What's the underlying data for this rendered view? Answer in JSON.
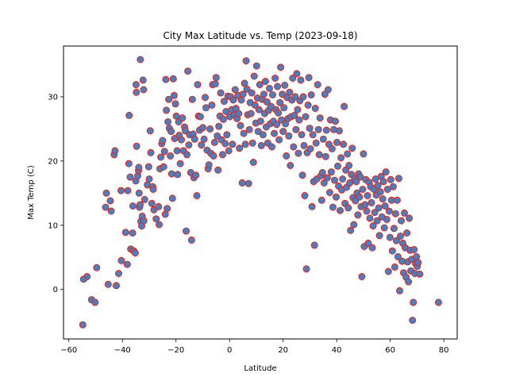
{
  "chart_data": {
    "type": "scatter",
    "title": "City Max Latitude vs. Temp (2023-09-18)",
    "xlabel": "Latitude",
    "ylabel": "Max Temp (C)",
    "xlim": [
      -62,
      85
    ],
    "ylim": [
      -7.7,
      37.9
    ],
    "xticks": [
      -60,
      -40,
      -20,
      0,
      20,
      40,
      60,
      80
    ],
    "yticks": [
      0,
      10,
      20,
      30
    ],
    "grid": false,
    "legend": "none",
    "marker_fill": "#4a7fbf",
    "marker_edge": "#e0231c",
    "points": [
      [
        -54.8,
        -5.5
      ],
      [
        -53.2,
        2.0
      ],
      [
        -54.5,
        1.6
      ],
      [
        -51.5,
        -1.6
      ],
      [
        -50.2,
        -2.0
      ],
      [
        -49.6,
        3.4
      ],
      [
        -46.3,
        12.8
      ],
      [
        -46.0,
        15.0
      ],
      [
        -45.3,
        0.8
      ],
      [
        -44.5,
        13.8
      ],
      [
        -44.2,
        12.2
      ],
      [
        -43.1,
        21.0
      ],
      [
        -42.8,
        21.6
      ],
      [
        -42.3,
        0.6
      ],
      [
        -41.4,
        2.5
      ],
      [
        -40.5,
        15.4
      ],
      [
        -40.4,
        4.5
      ],
      [
        -38.8,
        8.9
      ],
      [
        -38.2,
        3.9
      ],
      [
        -38.0,
        15.4
      ],
      [
        -37.6,
        19.6
      ],
      [
        -37.5,
        27.1
      ],
      [
        -37.1,
        17.5
      ],
      [
        -36.9,
        6.3
      ],
      [
        -36.2,
        8.8
      ],
      [
        -36.1,
        13.0
      ],
      [
        -35.8,
        6.0
      ],
      [
        -35.2,
        5.7
      ],
      [
        -35.0,
        16.9
      ],
      [
        -34.9,
        31.9
      ],
      [
        -34.8,
        30.7
      ],
      [
        -34.7,
        22.3
      ],
      [
        -34.3,
        17.7
      ],
      [
        -34.0,
        18.5
      ],
      [
        -33.9,
        19.0
      ],
      [
        -33.8,
        15.0
      ],
      [
        -33.6,
        12.8
      ],
      [
        -33.4,
        13.2
      ],
      [
        -33.3,
        35.8
      ],
      [
        -33.1,
        10.6
      ],
      [
        -32.8,
        9.9
      ],
      [
        -32.6,
        11.4
      ],
      [
        -32.3,
        32.6
      ],
      [
        -32.1,
        31.1
      ],
      [
        -32.0,
        10.7
      ],
      [
        -31.7,
        14.0
      ],
      [
        -30.7,
        16.3
      ],
      [
        -30.2,
        19.1
      ],
      [
        -30.0,
        17.2
      ],
      [
        -29.6,
        24.7
      ],
      [
        -29.4,
        21.3
      ],
      [
        -29.0,
        13.4
      ],
      [
        -28.7,
        16.0
      ],
      [
        -28.5,
        15.6
      ],
      [
        -28.2,
        12.4
      ],
      [
        -27.4,
        11.0
      ],
      [
        -26.5,
        12.9
      ],
      [
        -26.3,
        10.1
      ],
      [
        -26.0,
        18.8
      ],
      [
        -25.7,
        20.6
      ],
      [
        -25.3,
        22.7
      ],
      [
        -25.0,
        23.2
      ],
      [
        -24.6,
        19.1
      ],
      [
        -24.3,
        21.5
      ],
      [
        -24.0,
        11.7
      ],
      [
        -23.8,
        32.7
      ],
      [
        -23.6,
        27.9
      ],
      [
        -23.3,
        12.6
      ],
      [
        -23.0,
        26.1
      ],
      [
        -22.7,
        29.6
      ],
      [
        -22.5,
        25.1
      ],
      [
        -22.1,
        20.8
      ],
      [
        -21.8,
        24.6
      ],
      [
        -21.6,
        18.0
      ],
      [
        -21.3,
        14.2
      ],
      [
        -21.0,
        32.8
      ],
      [
        -20.7,
        30.2
      ],
      [
        -20.5,
        23.5
      ],
      [
        -20.2,
        28.9
      ],
      [
        -19.9,
        27.0
      ],
      [
        -19.6,
        21.6
      ],
      [
        -19.4,
        17.9
      ],
      [
        -19.0,
        26.1
      ],
      [
        -18.8,
        24.0
      ],
      [
        -18.4,
        19.6
      ],
      [
        -18.0,
        23.3
      ],
      [
        -17.6,
        26.7
      ],
      [
        -17.2,
        21.6
      ],
      [
        -16.8,
        25.3
      ],
      [
        -16.5,
        24.7
      ],
      [
        -16.2,
        9.1
      ],
      [
        -15.9,
        21.0
      ],
      [
        -15.6,
        34.0
      ],
      [
        -15.2,
        22.5
      ],
      [
        -14.9,
        24.1
      ],
      [
        -14.5,
        18.2
      ],
      [
        -14.2,
        7.7
      ],
      [
        -13.9,
        29.6
      ],
      [
        -13.6,
        24.2
      ],
      [
        -13.3,
        17.4
      ],
      [
        -13.0,
        23.4
      ],
      [
        -12.6,
        17.8
      ],
      [
        -12.2,
        14.6
      ],
      [
        -11.9,
        31.9
      ],
      [
        -11.6,
        27.0
      ],
      [
        -11.2,
        24.8
      ],
      [
        -10.9,
        26.9
      ],
      [
        -10.5,
        22.5
      ],
      [
        -10.0,
        25.2
      ],
      [
        -9.5,
        23.4
      ],
      [
        -9.1,
        29.9
      ],
      [
        -8.8,
        28.3
      ],
      [
        -8.4,
        21.7
      ],
      [
        -8.0,
        18.8
      ],
      [
        -7.7,
        19.4
      ],
      [
        -7.3,
        25.0
      ],
      [
        -7.0,
        21.2
      ],
      [
        -6.6,
        28.7
      ],
      [
        -6.3,
        31.9
      ],
      [
        -6.0,
        20.8
      ],
      [
        -5.6,
        22.9
      ],
      [
        -5.3,
        32.0
      ],
      [
        -5.0,
        33.0
      ],
      [
        -4.6,
        23.9
      ],
      [
        -4.3,
        18.6
      ],
      [
        -4.0,
        25.4
      ],
      [
        -3.6,
        27.0
      ],
      [
        -3.3,
        30.6
      ],
      [
        -3.0,
        23.3
      ],
      [
        -2.6,
        21.0
      ],
      [
        -2.3,
        26.5
      ],
      [
        -2.0,
        29.3
      ],
      [
        -1.6,
        22.7
      ],
      [
        -1.3,
        27.7
      ],
      [
        -1.0,
        24.1
      ],
      [
        -0.6,
        30.1
      ],
      [
        -0.3,
        21.6
      ],
      [
        0.1,
        26.9
      ],
      [
        0.4,
        30.0
      ],
      [
        0.8,
        28.0
      ],
      [
        1.1,
        22.6
      ],
      [
        1.4,
        29.5
      ],
      [
        1.8,
        27.2
      ],
      [
        2.1,
        31.1
      ],
      [
        2.4,
        28.2
      ],
      [
        2.8,
        26.6
      ],
      [
        3.1,
        30.2
      ],
      [
        3.4,
        27.4
      ],
      [
        3.7,
        22.0
      ],
      [
        4.1,
        25.5
      ],
      [
        4.4,
        29.5
      ],
      [
        4.7,
        16.6
      ],
      [
        5.0,
        30.4
      ],
      [
        5.3,
        24.3
      ],
      [
        5.6,
        32.1
      ],
      [
        5.9,
        22.6
      ],
      [
        6.2,
        35.6
      ],
      [
        6.5,
        31.2
      ],
      [
        6.8,
        27.2
      ],
      [
        7.1,
        16.5
      ],
      [
        7.4,
        24.9
      ],
      [
        7.7,
        29.1
      ],
      [
        8.0,
        27.4
      ],
      [
        8.3,
        30.6
      ],
      [
        8.6,
        22.8
      ],
      [
        8.9,
        19.8
      ],
      [
        9.2,
        33.2
      ],
      [
        9.5,
        28.7
      ],
      [
        9.8,
        25.9
      ],
      [
        10.1,
        34.8
      ],
      [
        10.4,
        29.8
      ],
      [
        10.7,
        24.6
      ],
      [
        11.0,
        28.0
      ],
      [
        11.3,
        31.9
      ],
      [
        11.6,
        26.2
      ],
      [
        11.9,
        22.4
      ],
      [
        12.2,
        29.6
      ],
      [
        12.5,
        24.1
      ],
      [
        12.8,
        30.4
      ],
      [
        13.1,
        27.4
      ],
      [
        13.4,
        32.4
      ],
      [
        13.7,
        25.3
      ],
      [
        14.0,
        29.2
      ],
      [
        14.3,
        22.8
      ],
      [
        14.6,
        27.9
      ],
      [
        14.9,
        31.3
      ],
      [
        15.2,
        25.8
      ],
      [
        15.5,
        28.5
      ],
      [
        15.8,
        22.2
      ],
      [
        16.1,
        30.3
      ],
      [
        16.4,
        26.2
      ],
      [
        16.7,
        24.3
      ],
      [
        17.0,
        32.9
      ],
      [
        17.3,
        28.0
      ],
      [
        17.6,
        25.7
      ],
      [
        17.9,
        31.6
      ],
      [
        18.2,
        27.5
      ],
      [
        18.5,
        23.3
      ],
      [
        18.8,
        29.1
      ],
      [
        19.1,
        34.6
      ],
      [
        19.4,
        26.4
      ],
      [
        19.7,
        30.4
      ],
      [
        20.0,
        24.6
      ],
      [
        20.3,
        28.3
      ],
      [
        20.6,
        31.8
      ],
      [
        20.9,
        25.8
      ],
      [
        21.2,
        20.8
      ],
      [
        21.5,
        29.9
      ],
      [
        21.8,
        26.6
      ],
      [
        22.1,
        23.9
      ],
      [
        22.4,
        30.7
      ],
      [
        22.7,
        19.3
      ],
      [
        23.0,
        26.9
      ],
      [
        23.3,
        29.5
      ],
      [
        23.6,
        32.9
      ],
      [
        23.9,
        22.2
      ],
      [
        24.2,
        27.1
      ],
      [
        24.5,
        30.0
      ],
      [
        24.8,
        24.9
      ],
      [
        25.1,
        33.6
      ],
      [
        25.4,
        28.0
      ],
      [
        25.7,
        21.2
      ],
      [
        26.0,
        26.4
      ],
      [
        26.3,
        29.4
      ],
      [
        26.6,
        32.6
      ],
      [
        26.9,
        24.1
      ],
      [
        27.2,
        17.8
      ],
      [
        27.5,
        30.0
      ],
      [
        27.8,
        22.4
      ],
      [
        28.1,
        14.6
      ],
      [
        28.4,
        26.9
      ],
      [
        28.7,
        3.2
      ],
      [
        29.0,
        21.3
      ],
      [
        29.3,
        28.7
      ],
      [
        29.6,
        33.0
      ],
      [
        29.9,
        25.1
      ],
      [
        30.2,
        21.9
      ],
      [
        30.5,
        30.3
      ],
      [
        30.8,
        12.9
      ],
      [
        31.1,
        24.1
      ],
      [
        31.4,
        16.8
      ],
      [
        31.7,
        6.9
      ],
      [
        32.0,
        28.2
      ],
      [
        32.3,
        22.8
      ],
      [
        32.6,
        17.2
      ],
      [
        32.9,
        31.9
      ],
      [
        33.2,
        24.9
      ],
      [
        33.5,
        21.0
      ],
      [
        33.8,
        26.7
      ],
      [
        34.1,
        17.7
      ],
      [
        34.4,
        13.9
      ],
      [
        34.7,
        18.2
      ],
      [
        35.0,
        23.4
      ],
      [
        35.3,
        16.6
      ],
      [
        35.6,
        30.4
      ],
      [
        35.9,
        20.7
      ],
      [
        36.2,
        24.8
      ],
      [
        36.5,
        17.4
      ],
      [
        36.8,
        31.1
      ],
      [
        37.1,
        22.6
      ],
      [
        37.4,
        15.1
      ],
      [
        37.7,
        26.4
      ],
      [
        38.0,
        18.3
      ],
      [
        38.3,
        21.9
      ],
      [
        38.6,
        12.8
      ],
      [
        38.9,
        24.9
      ],
      [
        39.2,
        17.0
      ],
      [
        39.5,
        26.2
      ],
      [
        39.8,
        14.4
      ],
      [
        40.1,
        22.9
      ],
      [
        40.4,
        19.2
      ],
      [
        40.7,
        16.1
      ],
      [
        41.0,
        24.7
      ],
      [
        41.3,
        12.3
      ],
      [
        41.6,
        20.5
      ],
      [
        41.9,
        15.5
      ],
      [
        42.2,
        17.2
      ],
      [
        42.5,
        22.6
      ],
      [
        42.8,
        28.5
      ],
      [
        43.1,
        13.4
      ],
      [
        43.4,
        18.6
      ],
      [
        43.7,
        15.9
      ],
      [
        44.0,
        21.1
      ],
      [
        44.3,
        12.7
      ],
      [
        44.6,
        19.3
      ],
      [
        44.9,
        16.6
      ],
      [
        45.2,
        9.2
      ],
      [
        45.5,
        17.9
      ],
      [
        45.8,
        22.0
      ],
      [
        46.1,
        14.3
      ],
      [
        46.4,
        10.1
      ],
      [
        46.7,
        17.2
      ],
      [
        47.0,
        13.8
      ],
      [
        47.3,
        16.8
      ],
      [
        47.6,
        15.0
      ],
      [
        47.9,
        11.6
      ],
      [
        48.2,
        18.0
      ],
      [
        48.5,
        14.4
      ],
      [
        48.8,
        17.5
      ],
      [
        49.1,
        12.9
      ],
      [
        49.4,
        2.0
      ],
      [
        49.7,
        15.6
      ],
      [
        50.0,
        21.1
      ],
      [
        50.3,
        6.7
      ],
      [
        50.6,
        13.2
      ],
      [
        50.9,
        17.1
      ],
      [
        51.2,
        12.2
      ],
      [
        51.5,
        14.6
      ],
      [
        51.8,
        7.2
      ],
      [
        52.1,
        16.7
      ],
      [
        52.4,
        11.1
      ],
      [
        52.7,
        16.0
      ],
      [
        53.0,
        13.5
      ],
      [
        53.3,
        6.5
      ],
      [
        53.6,
        9.9
      ],
      [
        53.9,
        15.6
      ],
      [
        54.2,
        12.0
      ],
      [
        54.5,
        17.2
      ],
      [
        54.8,
        14.7
      ],
      [
        55.1,
        10.7
      ],
      [
        55.4,
        16.2
      ],
      [
        55.7,
        12.7
      ],
      [
        56.0,
        8.4
      ],
      [
        56.3,
        15.2
      ],
      [
        56.6,
        17.6
      ],
      [
        56.9,
        11.3
      ],
      [
        57.2,
        14.1
      ],
      [
        57.5,
        16.8
      ],
      [
        57.8,
        9.6
      ],
      [
        58.1,
        13.0
      ],
      [
        58.4,
        18.3
      ],
      [
        58.7,
        10.9
      ],
      [
        59.0,
        15.6
      ],
      [
        59.3,
        2.8
      ],
      [
        59.6,
        12.2
      ],
      [
        59.9,
        8.1
      ],
      [
        60.2,
        17.1
      ],
      [
        60.5,
        13.9
      ],
      [
        60.8,
        6.0
      ],
      [
        61.1,
        16.0
      ],
      [
        61.4,
        9.5
      ],
      [
        61.7,
        3.5
      ],
      [
        62.0,
        11.8
      ],
      [
        62.3,
        7.6
      ],
      [
        62.6,
        13.9
      ],
      [
        62.9,
        5.1
      ],
      [
        63.2,
        17.3
      ],
      [
        63.5,
        -0.2
      ],
      [
        63.8,
        8.3
      ],
      [
        64.1,
        10.7
      ],
      [
        64.4,
        4.4
      ],
      [
        64.7,
        7.2
      ],
      [
        65.0,
        2.6
      ],
      [
        65.3,
        11.9
      ],
      [
        65.6,
        6.5
      ],
      [
        65.9,
        1.9
      ],
      [
        66.2,
        8.8
      ],
      [
        66.5,
        4.3
      ],
      [
        66.8,
        1.2
      ],
      [
        67.1,
        11.1
      ],
      [
        67.4,
        6.1
      ],
      [
        67.7,
        2.9
      ],
      [
        68.0,
        4.7
      ],
      [
        68.3,
        -4.8
      ],
      [
        68.6,
        -2.0
      ],
      [
        68.9,
        6.2
      ],
      [
        69.2,
        2.5
      ],
      [
        69.5,
        4.0
      ],
      [
        69.8,
        5.1
      ],
      [
        70.1,
        3.6
      ],
      [
        70.4,
        4.2
      ],
      [
        71.0,
        2.4
      ],
      [
        78.0,
        -2.0
      ]
    ]
  }
}
